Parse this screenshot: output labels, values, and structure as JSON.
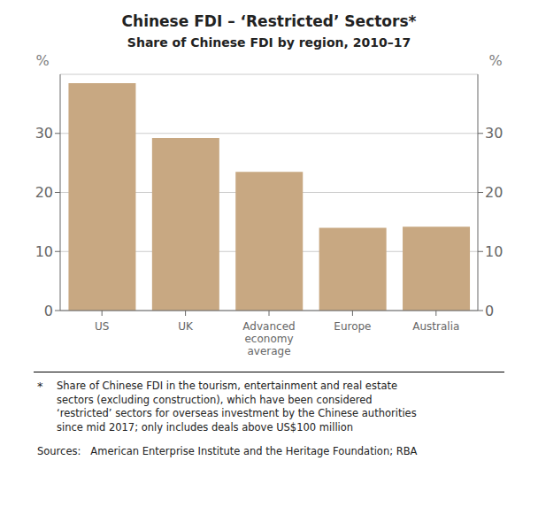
{
  "chart_data": {
    "type": "bar",
    "title": "Chinese FDI – ‘Restricted’ Sectors*",
    "subtitle": "Share of Chinese FDI by region, 2010–17",
    "categories": [
      "US",
      "UK",
      "Advanced\neconomy\naverage",
      "Europe",
      "Australia"
    ],
    "values": [
      38.5,
      29.2,
      23.5,
      14.0,
      14.2
    ],
    "color": "#C8A882",
    "ylabel": "%",
    "y2label": "%",
    "ylim": [
      0,
      40
    ],
    "yticks": [
      0,
      10,
      20,
      30
    ],
    "y2lim": [
      0,
      40
    ],
    "y2ticks": [
      0,
      10,
      20,
      30
    ],
    "grid": true,
    "annotations": [
      "*",
      "Share of Chinese FDI in the tourism, entertainment and real estate\nsectors (excluding construction), which have been considered\n‘restricted’ sectors for overseas investment by the Chinese authorities\nsince mid 2017; only includes deals above US$100 million",
      "Sources:   American Enterprise Institute and the Heritage Foundation; RBA"
    ]
  }
}
